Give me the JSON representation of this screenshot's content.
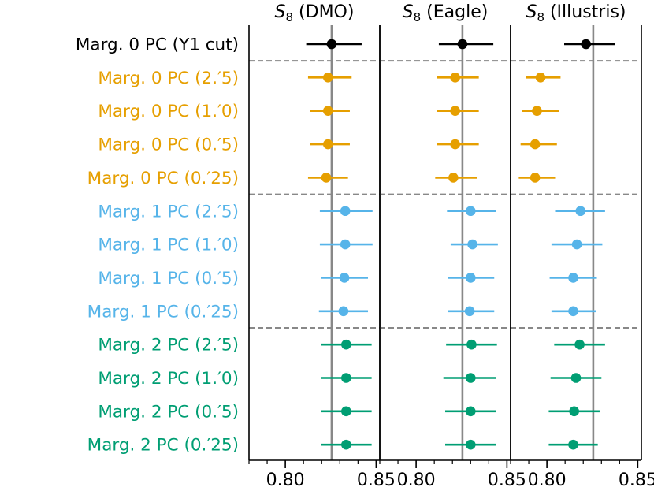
{
  "chart_data": {
    "type": "forest",
    "panels": [
      {
        "title_symbol": "S",
        "title_sub": "8",
        "title_text": " (DMO)",
        "xlim": [
          0.78,
          0.852
        ],
        "xticks": [
          "0.80",
          "0.85"
        ],
        "reference": 0.8255
      },
      {
        "title_symbol": "S",
        "title_sub": "8",
        "title_text": " (Eagle)",
        "xlim": [
          0.78,
          0.852
        ],
        "xticks": [
          "0.80",
          "0.85"
        ],
        "reference": 0.8255
      },
      {
        "title_symbol": "S",
        "title_sub": "8",
        "title_text": " (Illustris)",
        "xlim": [
          0.78,
          0.852
        ],
        "xticks": [
          "0.80",
          "0.85"
        ],
        "reference": 0.8255
      }
    ],
    "rows": [
      {
        "label": "Marg. 0 PC (Y1 cut)",
        "color": "#000000",
        "values": [
          [
            0.8255,
            0.8115,
            0.842
          ],
          [
            0.8255,
            0.8125,
            0.8425
          ],
          [
            0.8215,
            0.8095,
            0.8375
          ]
        ]
      },
      {
        "label": "Marg. 0 PC (2.′5)",
        "color": "#E69F00",
        "values": [
          [
            0.8235,
            0.8125,
            0.8365
          ],
          [
            0.8215,
            0.8115,
            0.8345
          ],
          [
            0.7965,
            0.7885,
            0.8075
          ]
        ]
      },
      {
        "label": "Marg. 0 PC (1.′0)",
        "color": "#E69F00",
        "values": [
          [
            0.8235,
            0.8135,
            0.8355
          ],
          [
            0.8215,
            0.8115,
            0.8345
          ],
          [
            0.7945,
            0.7865,
            0.8065
          ]
        ]
      },
      {
        "label": "Marg. 0 PC (0.′5)",
        "color": "#E69F00",
        "values": [
          [
            0.8235,
            0.8135,
            0.8355
          ],
          [
            0.8215,
            0.8115,
            0.8345
          ],
          [
            0.7935,
            0.7855,
            0.8055
          ]
        ]
      },
      {
        "label": "Marg. 0 PC (0.′25)",
        "color": "#E69F00",
        "values": [
          [
            0.8225,
            0.8125,
            0.8345
          ],
          [
            0.8205,
            0.8105,
            0.8335
          ],
          [
            0.7935,
            0.7845,
            0.8045
          ]
        ]
      },
      {
        "label": "Marg. 1 PC (2.′5)",
        "color": "#56B4E9",
        "values": [
          [
            0.833,
            0.819,
            0.848
          ],
          [
            0.83,
            0.817,
            0.844
          ],
          [
            0.8185,
            0.8045,
            0.832
          ]
        ]
      },
      {
        "label": "Marg. 1 PC (1.′0)",
        "color": "#56B4E9",
        "values": [
          [
            0.833,
            0.819,
            0.848
          ],
          [
            0.831,
            0.819,
            0.845
          ],
          [
            0.8165,
            0.8025,
            0.8305
          ]
        ]
      },
      {
        "label": "Marg. 1 PC (0.′5)",
        "color": "#56B4E9",
        "values": [
          [
            0.8325,
            0.8195,
            0.8455
          ],
          [
            0.83,
            0.8175,
            0.843
          ],
          [
            0.8145,
            0.8015,
            0.8275
          ]
        ]
      },
      {
        "label": "Marg. 1 PC (0.′25)",
        "color": "#56B4E9",
        "values": [
          [
            0.832,
            0.8185,
            0.8455
          ],
          [
            0.8295,
            0.8175,
            0.843
          ],
          [
            0.8145,
            0.8025,
            0.827
          ]
        ]
      },
      {
        "label": "Marg. 2 PC (2.′5)",
        "color": "#009E73",
        "values": [
          [
            0.8335,
            0.8195,
            0.8475
          ],
          [
            0.8305,
            0.8165,
            0.8445
          ],
          [
            0.818,
            0.804,
            0.832
          ]
        ]
      },
      {
        "label": "Marg. 2 PC (1.′0)",
        "color": "#009E73",
        "values": [
          [
            0.8335,
            0.8195,
            0.8475
          ],
          [
            0.83,
            0.815,
            0.844
          ],
          [
            0.816,
            0.802,
            0.83
          ]
        ]
      },
      {
        "label": "Marg. 2 PC (0.′5)",
        "color": "#009E73",
        "values": [
          [
            0.8335,
            0.8195,
            0.8475
          ],
          [
            0.83,
            0.816,
            0.844
          ],
          [
            0.815,
            0.801,
            0.829
          ]
        ]
      },
      {
        "label": "Marg. 2 PC (0.′25)",
        "color": "#009E73",
        "values": [
          [
            0.8335,
            0.8195,
            0.8475
          ],
          [
            0.83,
            0.816,
            0.844
          ],
          [
            0.8145,
            0.801,
            0.828
          ]
        ]
      }
    ],
    "group_separators_after_rows": [
      0,
      4,
      8
    ],
    "reference_line_color": "#888888",
    "separator_color": "#888888"
  }
}
